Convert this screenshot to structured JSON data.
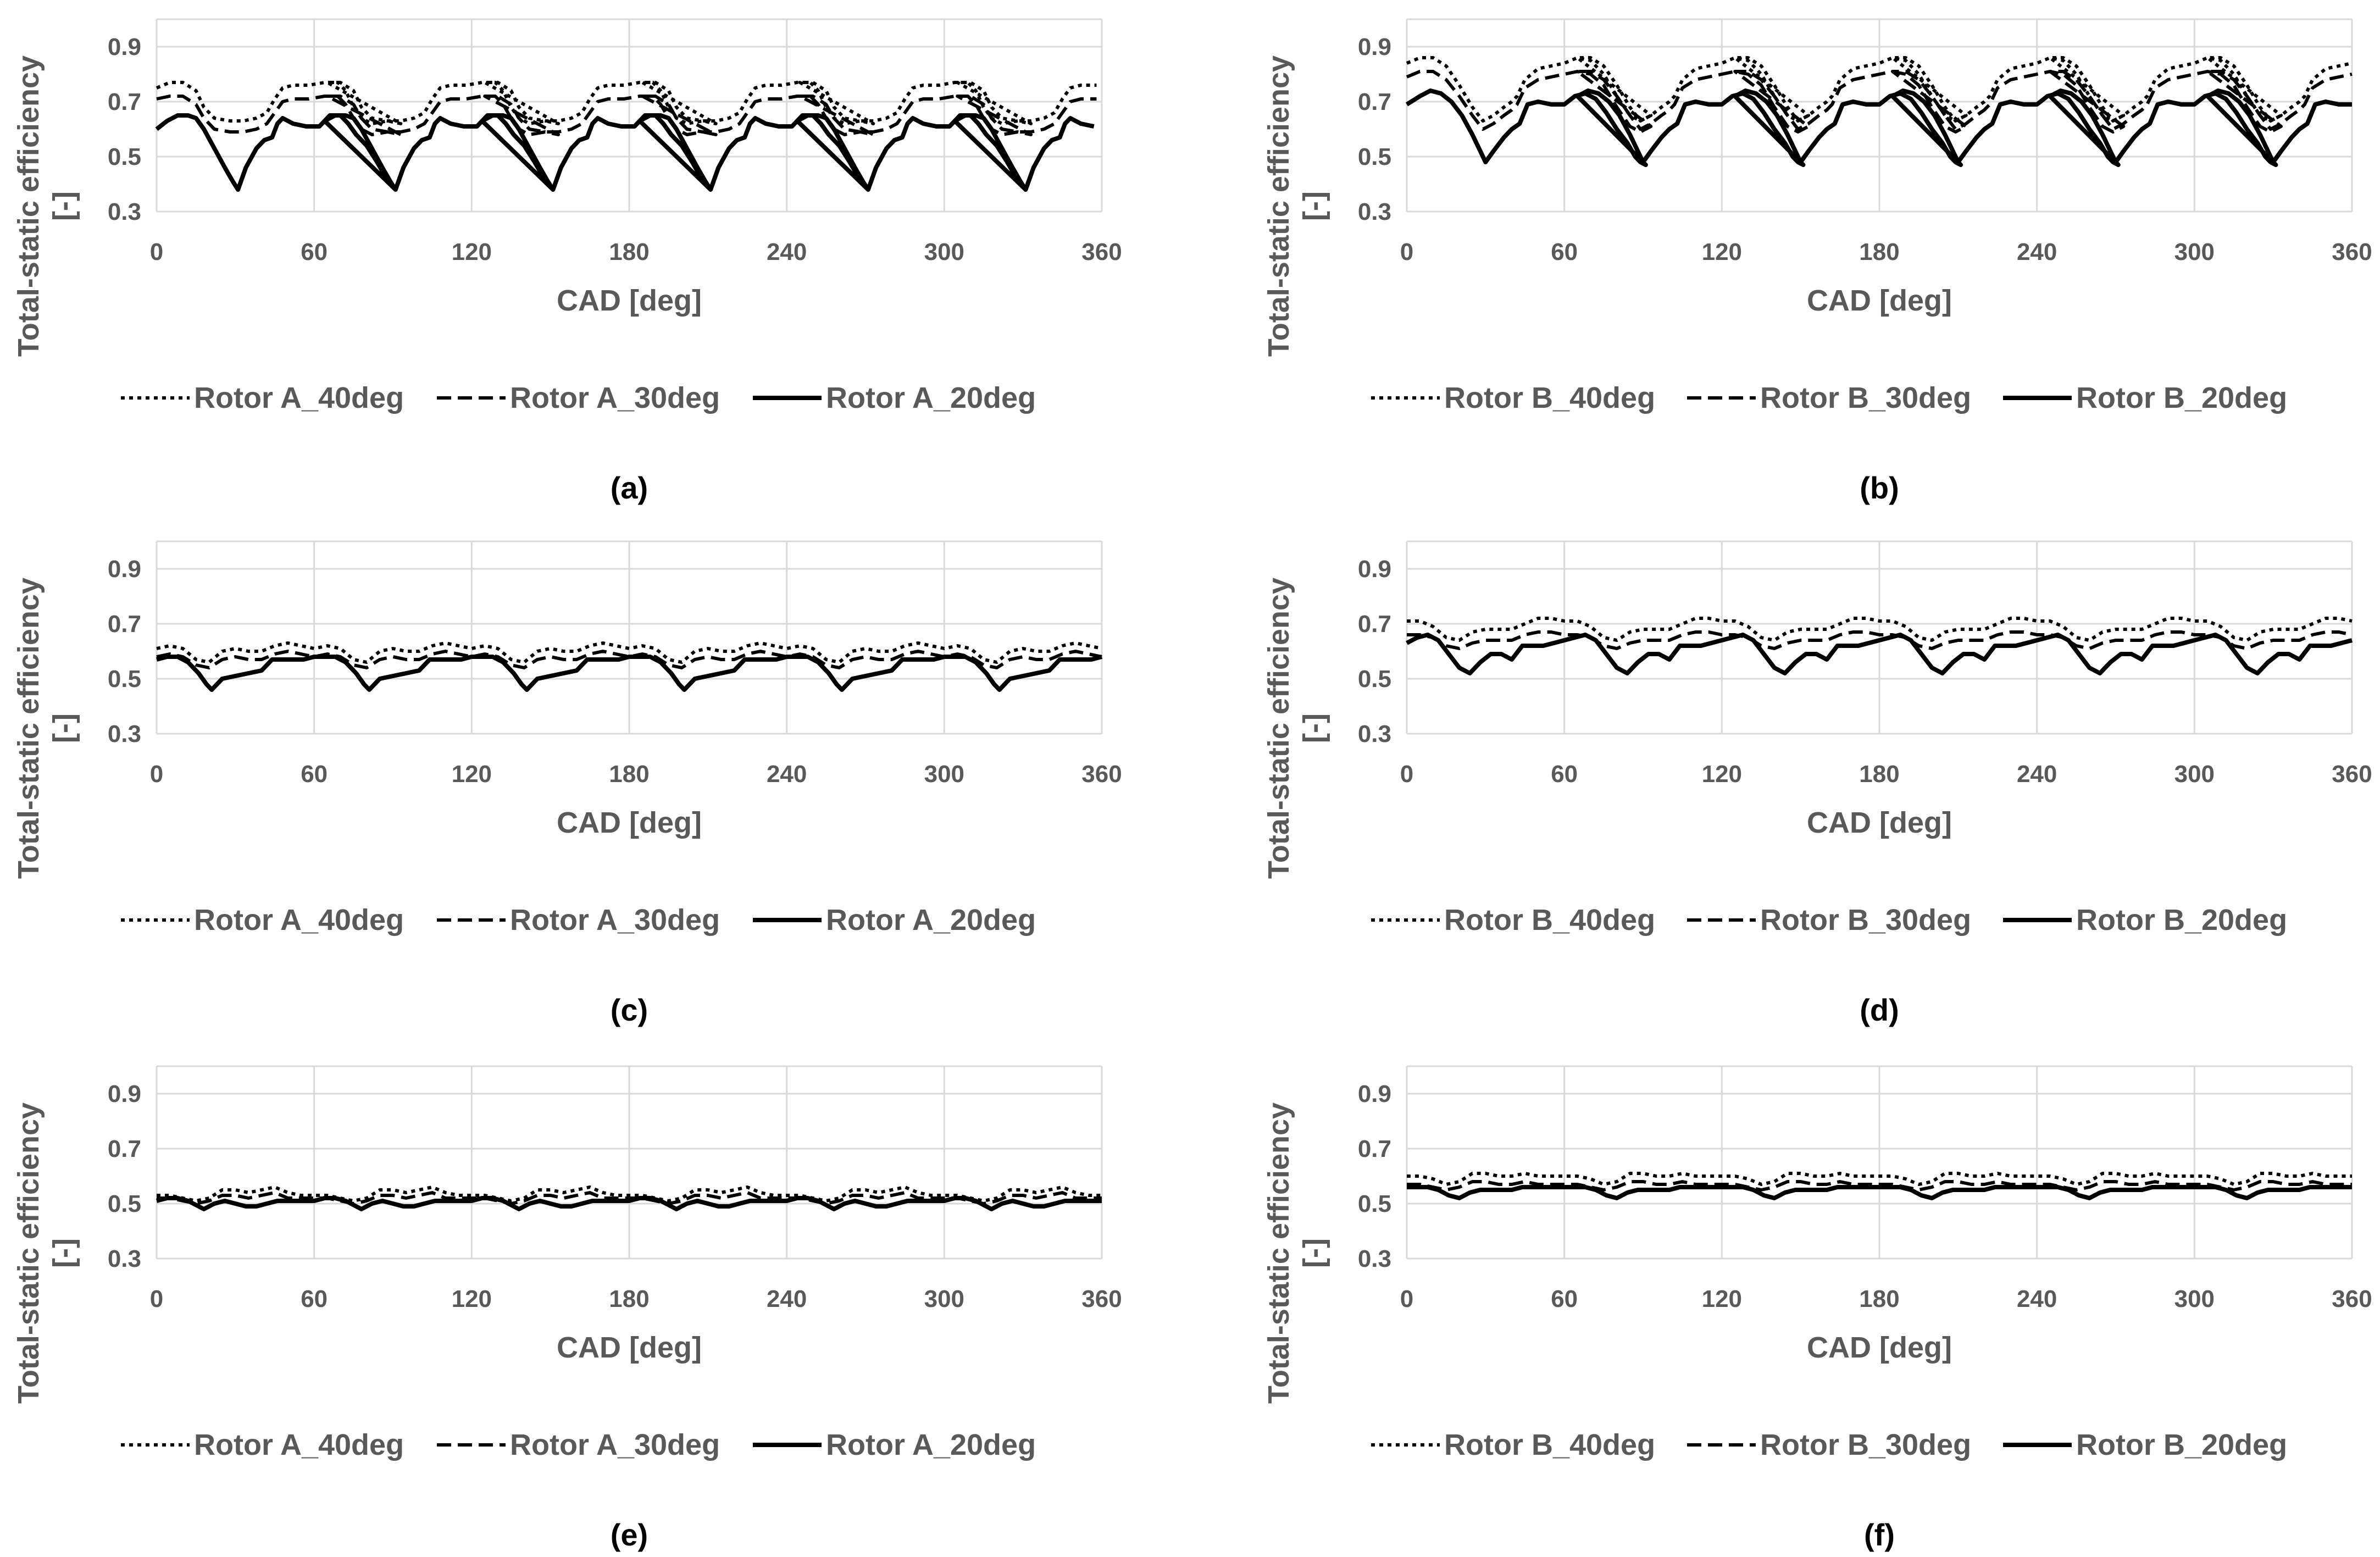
{
  "colors": {
    "gridline": "#d9d9d9",
    "series": "#000000",
    "text": "#595959",
    "background": "#ffffff"
  },
  "chart_data": [
    {
      "panel": "(a)",
      "type": "line",
      "xlabel": "CAD [deg]",
      "ylabel": "Total-static efficiency [-]",
      "xlim": [
        0,
        360
      ],
      "ylim": [
        0.3,
        1.0
      ],
      "xticks": [
        "0",
        "60",
        "120",
        "180",
        "240",
        "300",
        "360"
      ],
      "yticks": [
        "0.3",
        "0.5",
        "0.7",
        "0.9"
      ],
      "grid": true,
      "legend": "bottom",
      "series": [
        {
          "name": "Rotor A_40deg",
          "style": "dotted",
          "x": [
            0,
            5,
            10,
            15,
            18,
            22,
            28,
            33,
            38,
            42,
            45,
            48,
            52,
            58,
            64,
            69,
            72,
            75,
            78,
            82,
            88,
            93
          ],
          "y": [
            0.75,
            0.77,
            0.77,
            0.74,
            0.68,
            0.64,
            0.63,
            0.63,
            0.64,
            0.66,
            0.71,
            0.75,
            0.76,
            0.76,
            0.77,
            0.77,
            0.74,
            0.68,
            0.64,
            0.62,
            0.63,
            0.62
          ]
        },
        {
          "name": "Rotor A_30deg",
          "style": "dashed",
          "x": [
            0,
            5,
            10,
            15,
            18,
            22,
            28,
            33,
            38,
            42,
            45,
            48,
            52,
            58,
            64,
            69,
            72,
            75,
            78,
            82,
            88,
            93
          ],
          "y": [
            0.71,
            0.72,
            0.72,
            0.69,
            0.64,
            0.6,
            0.59,
            0.59,
            0.6,
            0.62,
            0.66,
            0.7,
            0.71,
            0.71,
            0.72,
            0.72,
            0.69,
            0.64,
            0.6,
            0.58,
            0.59,
            0.58
          ]
        },
        {
          "name": "Rotor A_20deg",
          "style": "solid",
          "x": [
            0,
            4,
            8,
            12,
            15,
            18,
            22,
            26,
            29,
            31,
            34,
            38,
            41,
            44,
            46,
            48,
            52,
            57,
            62,
            66,
            70,
            73,
            76,
            80,
            84,
            87,
            89,
            91
          ],
          "y": [
            0.6,
            0.63,
            0.65,
            0.65,
            0.64,
            0.6,
            0.53,
            0.46,
            0.41,
            0.38,
            0.46,
            0.53,
            0.56,
            0.57,
            0.62,
            0.64,
            0.62,
            0.61,
            0.61,
            0.65,
            0.65,
            0.62,
            0.58,
            0.54,
            0.48,
            0.43,
            0.4,
            0.38
          ]
        }
      ]
    },
    {
      "panel": "(b)",
      "type": "line",
      "xlabel": "CAD [deg]",
      "ylabel": "Total-static efficiency [-]",
      "xlim": [
        0,
        360
      ],
      "ylim": [
        0.3,
        1.0
      ],
      "xticks": [
        "0",
        "60",
        "120",
        "180",
        "240",
        "300",
        "360"
      ],
      "yticks": [
        "0.3",
        "0.5",
        "0.7",
        "0.9"
      ],
      "grid": true,
      "legend": "bottom",
      "series": [
        {
          "name": "Rotor B_40deg",
          "style": "dotted",
          "x": [
            0,
            5,
            10,
            15,
            20,
            25,
            29,
            33,
            37,
            40,
            42,
            45,
            50,
            55,
            60,
            65,
            70,
            75,
            80,
            85,
            89,
            93
          ],
          "y": [
            0.84,
            0.86,
            0.86,
            0.83,
            0.76,
            0.68,
            0.63,
            0.65,
            0.68,
            0.7,
            0.72,
            0.78,
            0.82,
            0.83,
            0.84,
            0.86,
            0.85,
            0.8,
            0.72,
            0.65,
            0.63,
            0.65
          ]
        },
        {
          "name": "Rotor B_30deg",
          "style": "dashed",
          "x": [
            0,
            5,
            10,
            15,
            20,
            25,
            29,
            33,
            37,
            40,
            42,
            45,
            50,
            55,
            60,
            65,
            70,
            75,
            80,
            85,
            89,
            93
          ],
          "y": [
            0.79,
            0.81,
            0.81,
            0.78,
            0.72,
            0.65,
            0.6,
            0.62,
            0.65,
            0.67,
            0.69,
            0.75,
            0.78,
            0.79,
            0.8,
            0.81,
            0.8,
            0.76,
            0.68,
            0.61,
            0.59,
            0.61
          ]
        },
        {
          "name": "Rotor B_20deg",
          "style": "solid",
          "x": [
            0,
            5,
            9,
            13,
            17,
            21,
            25,
            28,
            30,
            33,
            37,
            40,
            43,
            46,
            50,
            55,
            60,
            64,
            68,
            72,
            76,
            80,
            84,
            87,
            89,
            91
          ],
          "y": [
            0.69,
            0.72,
            0.74,
            0.73,
            0.7,
            0.65,
            0.58,
            0.52,
            0.48,
            0.52,
            0.57,
            0.6,
            0.62,
            0.69,
            0.7,
            0.69,
            0.69,
            0.72,
            0.73,
            0.71,
            0.66,
            0.6,
            0.55,
            0.5,
            0.48,
            0.47
          ]
        }
      ]
    },
    {
      "panel": "(c)",
      "type": "line",
      "xlabel": "CAD [deg]",
      "ylabel": "Total-static efficiency [-]",
      "xlim": [
        0,
        360
      ],
      "ylim": [
        0.3,
        1.0
      ],
      "xticks": [
        "0",
        "60",
        "120",
        "180",
        "240",
        "300",
        "360"
      ],
      "yticks": [
        "0.3",
        "0.5",
        "0.7",
        "0.9"
      ],
      "grid": true,
      "legend": "bottom",
      "series": [
        {
          "name": "Rotor A_40deg",
          "style": "dotted",
          "x": [
            0,
            5,
            10,
            15,
            20,
            25,
            30,
            35,
            40,
            45,
            50,
            55,
            60
          ],
          "y": [
            0.61,
            0.62,
            0.61,
            0.57,
            0.56,
            0.6,
            0.61,
            0.6,
            0.6,
            0.62,
            0.63,
            0.62,
            0.61
          ]
        },
        {
          "name": "Rotor A_30deg",
          "style": "dashed",
          "x": [
            0,
            5,
            10,
            15,
            20,
            25,
            30,
            35,
            40,
            45,
            50,
            55,
            60
          ],
          "y": [
            0.58,
            0.59,
            0.58,
            0.55,
            0.54,
            0.57,
            0.58,
            0.57,
            0.57,
            0.59,
            0.6,
            0.59,
            0.58
          ]
        },
        {
          "name": "Rotor A_20deg",
          "style": "solid",
          "x": [
            0,
            4,
            8,
            12,
            16,
            19,
            21,
            25,
            30,
            35,
            40,
            44,
            48,
            52,
            56,
            60
          ],
          "y": [
            0.57,
            0.58,
            0.58,
            0.56,
            0.52,
            0.48,
            0.46,
            0.5,
            0.51,
            0.52,
            0.53,
            0.57,
            0.57,
            0.57,
            0.57,
            0.58
          ]
        }
      ]
    },
    {
      "panel": "(d)",
      "type": "line",
      "xlabel": "CAD [deg]",
      "ylabel": "Total-static efficiency [-]",
      "xlim": [
        0,
        360
      ],
      "ylim": [
        0.3,
        1.0
      ],
      "xticks": [
        "0",
        "60",
        "120",
        "180",
        "240",
        "300",
        "360"
      ],
      "yticks": [
        "0.3",
        "0.5",
        "0.7",
        "0.9"
      ],
      "grid": true,
      "legend": "bottom",
      "series": [
        {
          "name": "Rotor B_40deg",
          "style": "dotted",
          "x": [
            0,
            5,
            10,
            15,
            20,
            25,
            30,
            35,
            40,
            45,
            50,
            55,
            60
          ],
          "y": [
            0.71,
            0.71,
            0.69,
            0.65,
            0.64,
            0.67,
            0.68,
            0.68,
            0.68,
            0.7,
            0.72,
            0.72,
            0.71
          ]
        },
        {
          "name": "Rotor B_30deg",
          "style": "dashed",
          "x": [
            0,
            5,
            10,
            15,
            20,
            25,
            30,
            35,
            40,
            45,
            50,
            55,
            60
          ],
          "y": [
            0.66,
            0.66,
            0.65,
            0.62,
            0.61,
            0.63,
            0.64,
            0.64,
            0.64,
            0.66,
            0.67,
            0.67,
            0.66
          ]
        },
        {
          "name": "Rotor B_20deg",
          "style": "solid",
          "x": [
            0,
            4,
            8,
            12,
            16,
            20,
            24,
            28,
            32,
            36,
            40,
            44,
            48,
            52,
            56,
            60
          ],
          "y": [
            0.63,
            0.65,
            0.66,
            0.64,
            0.59,
            0.54,
            0.52,
            0.56,
            0.59,
            0.59,
            0.57,
            0.62,
            0.62,
            0.62,
            0.63,
            0.64
          ]
        }
      ]
    },
    {
      "panel": "(e)",
      "type": "line",
      "xlabel": "CAD [deg]",
      "ylabel": "Total-static efficiency [-]",
      "xlim": [
        0,
        360
      ],
      "ylim": [
        0.3,
        1.0
      ],
      "xticks": [
        "0",
        "60",
        "120",
        "180",
        "240",
        "300",
        "360"
      ],
      "yticks": [
        "0.3",
        "0.5",
        "0.7",
        "0.9"
      ],
      "grid": true,
      "legend": "bottom",
      "series": [
        {
          "name": "Rotor A_40deg",
          "style": "dotted",
          "x": [
            0,
            5,
            10,
            15,
            20,
            25,
            30,
            35,
            40,
            45,
            50,
            55,
            60
          ],
          "y": [
            0.53,
            0.53,
            0.52,
            0.51,
            0.52,
            0.55,
            0.55,
            0.54,
            0.55,
            0.56,
            0.54,
            0.53,
            0.53
          ]
        },
        {
          "name": "Rotor A_30deg",
          "style": "dashed",
          "x": [
            0,
            5,
            10,
            15,
            20,
            25,
            30,
            35,
            40,
            45,
            50,
            55,
            60
          ],
          "y": [
            0.52,
            0.52,
            0.51,
            0.5,
            0.51,
            0.53,
            0.53,
            0.52,
            0.53,
            0.54,
            0.52,
            0.52,
            0.52
          ]
        },
        {
          "name": "Rotor A_20deg",
          "style": "solid",
          "x": [
            0,
            4,
            8,
            12,
            16,
            18,
            22,
            26,
            30,
            34,
            38,
            42,
            46,
            50,
            55,
            60
          ],
          "y": [
            0.51,
            0.52,
            0.52,
            0.51,
            0.49,
            0.48,
            0.5,
            0.51,
            0.5,
            0.49,
            0.49,
            0.5,
            0.51,
            0.51,
            0.51,
            0.51
          ]
        }
      ]
    },
    {
      "panel": "(f)",
      "type": "line",
      "xlabel": "CAD [deg]",
      "ylabel": "Total-static efficiency [-]",
      "xlim": [
        0,
        360
      ],
      "ylim": [
        0.3,
        1.0
      ],
      "xticks": [
        "0",
        "60",
        "120",
        "180",
        "240",
        "300",
        "360"
      ],
      "yticks": [
        "0.3",
        "0.5",
        "0.7",
        "0.9"
      ],
      "grid": true,
      "legend": "bottom",
      "series": [
        {
          "name": "Rotor B_40deg",
          "style": "dotted",
          "x": [
            0,
            5,
            10,
            15,
            20,
            25,
            30,
            35,
            40,
            45,
            50,
            55,
            60
          ],
          "y": [
            0.6,
            0.6,
            0.59,
            0.57,
            0.58,
            0.61,
            0.61,
            0.6,
            0.6,
            0.61,
            0.6,
            0.6,
            0.6
          ]
        },
        {
          "name": "Rotor B_30deg",
          "style": "dashed",
          "x": [
            0,
            5,
            10,
            15,
            20,
            25,
            30,
            35,
            40,
            45,
            50,
            55,
            60
          ],
          "y": [
            0.57,
            0.57,
            0.56,
            0.55,
            0.56,
            0.58,
            0.58,
            0.57,
            0.57,
            0.58,
            0.57,
            0.57,
            0.57
          ]
        },
        {
          "name": "Rotor B_20deg",
          "style": "solid",
          "x": [
            0,
            4,
            8,
            12,
            16,
            20,
            24,
            28,
            32,
            36,
            40,
            44,
            48,
            52,
            56,
            60
          ],
          "y": [
            0.56,
            0.56,
            0.56,
            0.55,
            0.53,
            0.52,
            0.54,
            0.55,
            0.55,
            0.55,
            0.55,
            0.56,
            0.56,
            0.56,
            0.56,
            0.56
          ]
        }
      ]
    }
  ]
}
